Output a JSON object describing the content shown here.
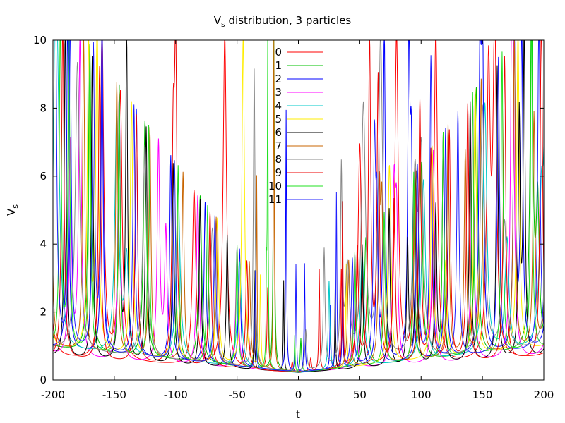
{
  "chart_data": {
    "type": "line",
    "title_main": "V",
    "title_sub": "s",
    "title_rest": " distribution, 3 particles",
    "xlabel": "t",
    "ylabel_main": "V",
    "ylabel_sub": "s",
    "xlim": [
      -200,
      200
    ],
    "ylim": [
      0,
      10
    ],
    "xticks": [
      "-200",
      "-150",
      "-100",
      "-50",
      "0",
      "50",
      "100",
      "150",
      "200"
    ],
    "yticks": [
      "0",
      "2",
      "4",
      "6",
      "8",
      "10"
    ],
    "grid": false,
    "legend_position": "top-center",
    "series": [
      {
        "name": "0",
        "color": "#ff0000",
        "baseline": 0.22,
        "period": 60,
        "phase": 15,
        "width": 4,
        "peak_scale": 1.0,
        "spikes": [
          [
            -160,
            10
          ],
          [
            -60,
            10
          ],
          [
            -5,
            0.5
          ],
          [
            10,
            0.6
          ],
          [
            50,
            6.8
          ],
          [
            80,
            10
          ],
          [
            112,
            10
          ],
          [
            160,
            10
          ]
        ]
      },
      {
        "name": "1",
        "color": "#00c000",
        "baseline": 0.22,
        "period": 45,
        "phase": 5,
        "width": 3.5,
        "peak_scale": 1.0,
        "spikes": [
          [
            -20,
            10
          ],
          [
            2,
            1.2
          ],
          [
            195,
            4.4
          ]
        ]
      },
      {
        "name": "2",
        "color": "#0000ff",
        "baseline": 0.22,
        "period": 28,
        "phase": 4,
        "width": 2.5,
        "peak_scale": 1.0,
        "spikes": [
          [
            -10,
            7.9
          ],
          [
            5,
            3.4
          ],
          [
            26,
            2.1
          ],
          [
            70,
            10
          ],
          [
            90,
            9.4
          ],
          [
            150,
            10
          ],
          [
            182,
            10
          ]
        ]
      },
      {
        "name": "3",
        "color": "#ff00ff",
        "baseline": 0.22,
        "period": 32,
        "phase": 10,
        "width": 3,
        "peak_scale": 1.0,
        "spikes": [
          [
            -186,
            6.5
          ],
          [
            -108,
            4.1
          ],
          [
            80,
            4.2
          ],
          [
            175,
            5.2
          ]
        ]
      },
      {
        "name": "4",
        "color": "#00c8c8",
        "baseline": 0.2,
        "period": 50,
        "phase": 22,
        "width": 4.5,
        "peak_scale": 0.9,
        "spikes": [
          [
            -196,
            4.6
          ],
          [
            -140,
            3.0
          ],
          [
            25,
            2.8
          ],
          [
            170,
            3.5
          ],
          [
            198,
            3.8
          ]
        ]
      },
      {
        "name": "5",
        "color": "#ffee00",
        "baseline": 0.22,
        "period": 35,
        "phase": 14,
        "width": 3,
        "peak_scale": 1.0,
        "spikes": [
          [
            -164,
            10
          ],
          [
            -45,
            10
          ],
          [
            75,
            2.1
          ],
          [
            120,
            3.0
          ]
        ]
      },
      {
        "name": "6",
        "color": "#000000",
        "baseline": 0.22,
        "period": 22,
        "phase": 8,
        "width": 2.2,
        "peak_scale": 1.0,
        "spikes": [
          [
            -140,
            10
          ],
          [
            -12,
            2.9
          ],
          [
            89,
            3.9
          ],
          [
            112,
            4.8
          ],
          [
            180,
            7.3
          ]
        ]
      },
      {
        "name": "7",
        "color": "#c86400",
        "baseline": 0.22,
        "period": 27,
        "phase": 18,
        "width": 2.5,
        "peak_scale": 1.0,
        "spikes": [
          [
            -20,
            10
          ],
          [
            -34,
            5.8
          ],
          [
            66,
            5.0
          ],
          [
            136,
            6.2
          ],
          [
            192,
            7.1
          ]
        ]
      },
      {
        "name": "8",
        "color": "#888888",
        "baseline": 0.2,
        "period": 55,
        "phase": 40,
        "width": 5,
        "peak_scale": 0.9,
        "spikes": [
          [
            -36,
            9.0
          ],
          [
            6,
            1.4
          ],
          [
            21,
            3.7
          ],
          [
            35,
            5.8
          ],
          [
            53,
            7.7
          ],
          [
            67,
            9.7
          ],
          [
            100,
            6.0
          ],
          [
            168,
            4.0
          ]
        ]
      },
      {
        "name": "9",
        "color": "#ee0000",
        "baseline": 0.21,
        "period": 30,
        "phase": 28,
        "width": 2.8,
        "peak_scale": 1.0,
        "spikes": [
          [
            -100,
            9.0
          ],
          [
            17,
            3.2
          ],
          [
            36,
            5.1
          ],
          [
            58,
            9.8
          ],
          [
            65,
            8.6
          ],
          [
            99,
            7.9
          ],
          [
            123,
            7.0
          ]
        ]
      },
      {
        "name": "10",
        "color": "#20e020",
        "baseline": 0.22,
        "period": 24,
        "phase": 2,
        "width": 2.2,
        "peak_scale": 1.0,
        "spikes": [
          [
            -25,
            10
          ],
          [
            -187,
            10
          ],
          [
            -3,
            1.3
          ]
        ]
      },
      {
        "name": "11",
        "color": "#2020ff",
        "baseline": 0.22,
        "period": 33,
        "phase": 20,
        "width": 2.6,
        "peak_scale": 1.0,
        "spikes": [
          [
            -198,
            10
          ],
          [
            -186,
            10
          ],
          [
            -160,
            10
          ],
          [
            -2,
            3.4
          ],
          [
            31,
            2.7
          ],
          [
            44,
            3.4
          ],
          [
            62,
            6.5
          ],
          [
            108,
            9.1
          ]
        ]
      }
    ]
  }
}
